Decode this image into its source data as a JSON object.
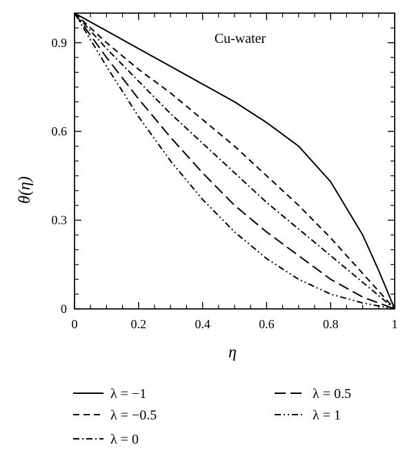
{
  "chart_data": {
    "type": "line",
    "xlabel": "η",
    "ylabel": "θ(η)",
    "xlim": [
      0,
      1
    ],
    "ylim": [
      0,
      1
    ],
    "xticks": [
      0,
      0.2,
      0.4,
      0.6,
      0.8,
      1
    ],
    "xtick_labels": [
      "0",
      "0.2",
      "0.4",
      "0.6",
      "0.8",
      "1"
    ],
    "yticks": [
      0,
      0.3,
      0.6,
      0.9
    ],
    "ytick_labels": [
      "0",
      "0.3",
      "0.6",
      "0.9"
    ],
    "annotation": "Cu-water",
    "grid": false,
    "legend_position": "below",
    "series": [
      {
        "name": "λ = −1",
        "style": "solid",
        "x": [
          0,
          0.1,
          0.2,
          0.3,
          0.4,
          0.5,
          0.6,
          0.7,
          0.8,
          0.9,
          0.95,
          1
        ],
        "y": [
          1,
          0.94,
          0.88,
          0.82,
          0.76,
          0.7,
          0.63,
          0.55,
          0.43,
          0.25,
          0.13,
          0
        ]
      },
      {
        "name": "λ = −0.5",
        "style": "dashed",
        "x": [
          0,
          0.1,
          0.2,
          0.3,
          0.4,
          0.5,
          0.6,
          0.7,
          0.8,
          0.9,
          1
        ],
        "y": [
          1,
          0.9,
          0.81,
          0.73,
          0.64,
          0.55,
          0.45,
          0.35,
          0.24,
          0.12,
          0
        ]
      },
      {
        "name": "λ = 0",
        "style": "dash-dot",
        "x": [
          0,
          0.1,
          0.2,
          0.3,
          0.4,
          0.5,
          0.6,
          0.7,
          0.8,
          0.9,
          1
        ],
        "y": [
          1,
          0.88,
          0.77,
          0.66,
          0.56,
          0.46,
          0.36,
          0.27,
          0.18,
          0.09,
          0
        ]
      },
      {
        "name": "λ = 0.5",
        "style": "long-dash",
        "x": [
          0,
          0.1,
          0.2,
          0.3,
          0.4,
          0.5,
          0.6,
          0.7,
          0.8,
          0.9,
          1
        ],
        "y": [
          1,
          0.85,
          0.71,
          0.58,
          0.46,
          0.35,
          0.26,
          0.18,
          0.1,
          0.04,
          0
        ]
      },
      {
        "name": "λ = 1",
        "style": "dash-dot-dot",
        "x": [
          0,
          0.1,
          0.2,
          0.3,
          0.4,
          0.5,
          0.6,
          0.7,
          0.8,
          0.9,
          1
        ],
        "y": [
          1,
          0.82,
          0.65,
          0.5,
          0.37,
          0.26,
          0.17,
          0.1,
          0.05,
          0.02,
          0
        ]
      }
    ]
  }
}
